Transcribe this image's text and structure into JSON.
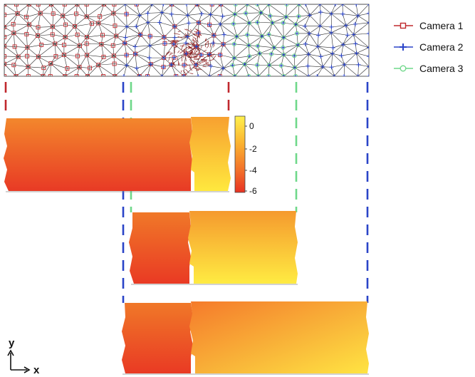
{
  "legend": {
    "items": [
      {
        "label": "Camera 1",
        "color": "#c0282d",
        "marker": "square"
      },
      {
        "label": "Camera 2",
        "color": "#2a44c8",
        "marker": "plus"
      },
      {
        "label": "Camera 3",
        "color": "#6fd88a",
        "marker": "circle"
      }
    ]
  },
  "colorbar": {
    "tick_labels": [
      "0",
      "-2",
      "-4",
      "-6"
    ],
    "colors": [
      "#ffea4a",
      "#fbb030",
      "#f57a2a",
      "#ea3b26"
    ]
  },
  "axes_indicator": {
    "x_label": "x",
    "y_label": "y"
  },
  "colors": {
    "camera1": "#c0282d",
    "camera2": "#2a44c8",
    "camera3": "#6fd88a",
    "mesh_edge": "#222222"
  }
}
